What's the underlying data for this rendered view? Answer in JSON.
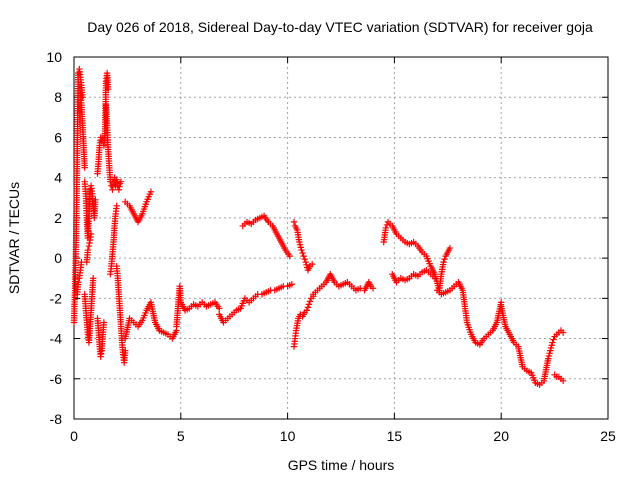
{
  "chart_data": {
    "type": "scatter",
    "title": "Day 026 of 2018, Sidereal Day-to-day VTEC variation (SDTVAR) for receiver goja",
    "xlabel": "GPS time / hours",
    "ylabel": "SDTVAR / TECUs",
    "xlim": [
      0,
      25
    ],
    "ylim": [
      -8,
      10
    ],
    "xticks": [
      0,
      5,
      10,
      15,
      20,
      25
    ],
    "yticks": [
      -8,
      -6,
      -4,
      -2,
      0,
      2,
      4,
      6,
      8,
      10
    ],
    "xtick_labels": [
      "0",
      "5",
      "10",
      "15",
      "20",
      "25"
    ],
    "ytick_labels": [
      "-8",
      "-6",
      "-4",
      "-2",
      "0",
      "2",
      "4",
      "6",
      "8",
      "10"
    ],
    "grid": true,
    "marker": "plus",
    "color": "#ff0000",
    "segments": [
      {
        "x": [
          0.0,
          0.05,
          0.1,
          0.15,
          0.2,
          0.25,
          0.3,
          0.35,
          0.4
        ],
        "y": [
          -3.2,
          -1.5,
          1.0,
          5.0,
          9.2,
          9.4,
          9.0,
          8.6,
          8.0
        ]
      },
      {
        "x": [
          0.3,
          0.35,
          0.4,
          0.45,
          0.5
        ],
        "y": [
          8.2,
          7.6,
          6.6,
          5.6,
          4.5
        ]
      },
      {
        "x": [
          0.15,
          0.2,
          0.25,
          0.3,
          0.35
        ],
        "y": [
          -1.8,
          -1.2,
          -1.0,
          -0.6,
          -0.2
        ]
      },
      {
        "x": [
          0.5,
          0.55,
          0.6,
          0.65,
          0.7,
          0.75,
          0.8,
          0.85,
          0.9,
          0.95,
          1.0
        ],
        "y": [
          3.8,
          3.2,
          2.0,
          1.0,
          2.2,
          3.4,
          3.6,
          3.2,
          2.6,
          2.0,
          2.9
        ]
      },
      {
        "x": [
          0.5,
          0.55,
          0.6,
          0.65,
          0.7,
          0.75,
          0.8,
          0.85,
          0.9
        ],
        "y": [
          -1.8,
          -2.5,
          -3.2,
          -3.8,
          -4.2,
          -3.5,
          -2.6,
          -1.8,
          -1.0
        ]
      },
      {
        "x": [
          0.6,
          0.65,
          0.7,
          0.75,
          0.8
        ],
        "y": [
          -0.2,
          0.4,
          0.6,
          0.9,
          1.2
        ]
      },
      {
        "x": [
          1.1,
          1.15,
          1.2,
          1.25,
          1.3,
          1.35,
          1.4,
          1.45,
          1.5,
          1.55,
          1.6
        ],
        "y": [
          4.2,
          4.8,
          5.6,
          6.0,
          5.8,
          6.0,
          5.6,
          6.2,
          8.8,
          9.2,
          8.4
        ]
      },
      {
        "x": [
          1.1,
          1.15,
          1.2,
          1.25,
          1.3,
          1.35,
          1.4
        ],
        "y": [
          -3.0,
          -3.6,
          -4.4,
          -4.9,
          -4.6,
          -3.8,
          -3.2
        ]
      },
      {
        "x": [
          1.5,
          1.55,
          1.6,
          1.65,
          1.7,
          1.75,
          1.8,
          1.85,
          1.9,
          1.95,
          2.0,
          2.05,
          2.1,
          2.15,
          2.2
        ],
        "y": [
          7.6,
          6.6,
          5.4,
          4.6,
          3.8,
          3.6,
          3.4,
          3.8,
          4.0,
          3.6,
          3.9,
          3.6,
          3.4,
          3.7,
          3.8
        ]
      },
      {
        "x": [
          1.7,
          1.75,
          1.8,
          1.85,
          1.9,
          1.95,
          2.0
        ],
        "y": [
          -0.8,
          -0.4,
          0.2,
          0.8,
          1.6,
          2.2,
          2.6
        ]
      },
      {
        "x": [
          2.0,
          2.05,
          2.1,
          2.15,
          2.2,
          2.25,
          2.3,
          2.35,
          2.4
        ],
        "y": [
          -0.4,
          -1.0,
          -1.8,
          -2.6,
          -3.4,
          -4.2,
          -4.8,
          -5.2,
          -4.6
        ]
      },
      {
        "x": [
          2.4,
          2.6,
          2.8,
          3.0,
          3.2,
          3.4,
          3.6
        ],
        "y": [
          2.8,
          2.6,
          2.2,
          1.8,
          2.2,
          2.8,
          3.3
        ]
      },
      {
        "x": [
          2.4,
          2.6,
          2.8,
          3.0,
          3.2,
          3.4,
          3.6,
          3.8,
          4.0,
          4.2,
          4.4,
          4.6,
          4.8
        ],
        "y": [
          -4.0,
          -3.0,
          -3.2,
          -3.4,
          -3.1,
          -2.6,
          -2.2,
          -3.2,
          -3.6,
          -3.7,
          -3.8,
          -4.0,
          -3.6
        ]
      },
      {
        "x": [
          4.8,
          4.95,
          5.0,
          5.2,
          5.4,
          5.6,
          5.8,
          6.0,
          6.2,
          6.4,
          6.6,
          6.8
        ],
        "y": [
          -3.4,
          -1.4,
          -2.2,
          -2.6,
          -2.5,
          -2.3,
          -2.4,
          -2.2,
          -2.4,
          -2.3,
          -2.2,
          -2.5
        ]
      },
      {
        "x": [
          6.8,
          7.0,
          7.2,
          7.4,
          7.6,
          7.8,
          8.0,
          8.2,
          8.4,
          8.6,
          8.8,
          9.0,
          9.2,
          9.4,
          9.6,
          9.8,
          10.0,
          10.2
        ],
        "y": [
          -2.8,
          -3.2,
          -3.0,
          -2.8,
          -2.6,
          -2.5,
          -2.0,
          -2.2,
          -2.0,
          -1.8,
          -1.8,
          -1.7,
          -1.6,
          -1.6,
          -1.5,
          -1.4,
          -1.4,
          -1.3
        ]
      },
      {
        "x": [
          7.9,
          8.1,
          8.3,
          8.5,
          8.7,
          8.9,
          9.1,
          9.3,
          9.5,
          9.7,
          9.9,
          10.1
        ],
        "y": [
          1.6,
          1.8,
          1.7,
          1.9,
          2.0,
          2.1,
          1.8,
          1.6,
          1.2,
          0.8,
          0.4,
          0.1
        ]
      },
      {
        "x": [
          10.3,
          10.35,
          10.45,
          10.55,
          10.65,
          10.75,
          10.85,
          10.95,
          11.05,
          11.15
        ],
        "y": [
          1.8,
          1.6,
          1.4,
          0.8,
          0.4,
          0.1,
          -0.2,
          -0.6,
          -0.4,
          -0.3
        ]
      },
      {
        "x": [
          10.3,
          10.35,
          10.4,
          10.5,
          10.6,
          10.7,
          10.8,
          10.9,
          11.0,
          11.1,
          11.2
        ],
        "y": [
          -4.4,
          -4.0,
          -3.6,
          -3.0,
          -2.8,
          -2.9,
          -2.7,
          -2.6,
          -2.3,
          -2.0,
          -1.9
        ]
      },
      {
        "x": [
          11.2,
          11.4,
          11.6,
          11.8,
          12.0,
          12.2,
          12.4,
          12.6,
          12.8,
          13.0,
          13.2,
          13.4
        ],
        "y": [
          -1.8,
          -1.6,
          -1.4,
          -1.2,
          -0.8,
          -1.2,
          -1.4,
          -1.3,
          -1.2,
          -1.4,
          -1.6,
          -1.5
        ]
      },
      {
        "x": [
          13.6,
          13.7,
          13.8,
          13.9,
          14.0
        ],
        "y": [
          -1.6,
          -1.4,
          -1.2,
          -1.4,
          -1.5
        ]
      },
      {
        "x": [
          14.5,
          14.6,
          14.7,
          14.9,
          15.1,
          15.3,
          15.5,
          15.7,
          15.9,
          16.1,
          16.3,
          16.5,
          16.7,
          16.9,
          17.1
        ],
        "y": [
          0.8,
          1.5,
          1.8,
          1.6,
          1.2,
          1.0,
          0.8,
          0.7,
          0.8,
          0.6,
          0.3,
          0.1,
          -0.4,
          -0.8,
          -1.6
        ]
      },
      {
        "x": [
          14.9,
          15.1,
          15.3,
          15.5,
          15.7,
          15.9,
          16.1,
          16.3,
          16.5,
          16.7,
          16.9
        ],
        "y": [
          -0.8,
          -1.2,
          -1.0,
          -1.1,
          -1.0,
          -0.8,
          -0.9,
          -0.7,
          -0.6,
          -0.8,
          -1.0
        ]
      },
      {
        "x": [
          17.1,
          17.2,
          17.3,
          17.4,
          17.5,
          17.6
        ],
        "y": [
          -1.6,
          -0.8,
          -0.2,
          0.1,
          0.3,
          0.5
        ]
      },
      {
        "x": [
          17.0,
          17.2,
          17.4,
          17.6,
          17.8,
          18.0,
          18.2,
          18.4,
          18.6,
          18.8,
          19.0,
          19.2,
          19.4,
          19.6,
          19.8,
          20.0
        ],
        "y": [
          -1.6,
          -1.8,
          -1.7,
          -1.6,
          -1.4,
          -1.2,
          -1.6,
          -3.2,
          -3.8,
          -4.2,
          -4.3,
          -4.0,
          -3.8,
          -3.6,
          -3.2,
          -2.2
        ]
      },
      {
        "x": [
          20.0,
          20.2,
          20.4,
          20.6,
          20.8,
          21.0,
          21.2,
          21.4,
          21.6,
          21.8,
          22.0,
          22.2
        ],
        "y": [
          -2.4,
          -3.4,
          -3.8,
          -4.2,
          -4.4,
          -5.4,
          -5.6,
          -5.7,
          -6.2,
          -6.3,
          -6.1,
          -5.0
        ]
      },
      {
        "x": [
          22.2,
          22.3,
          22.4,
          22.5,
          22.6,
          22.7,
          22.8,
          22.9
        ],
        "y": [
          -5.0,
          -4.6,
          -4.2,
          -3.9,
          -3.8,
          -3.7,
          -3.6,
          -3.7
        ]
      },
      {
        "x": [
          22.5,
          22.6,
          22.7,
          22.8,
          22.9
        ],
        "y": [
          -5.8,
          -5.9,
          -5.9,
          -6.0,
          -6.1
        ]
      }
    ]
  }
}
